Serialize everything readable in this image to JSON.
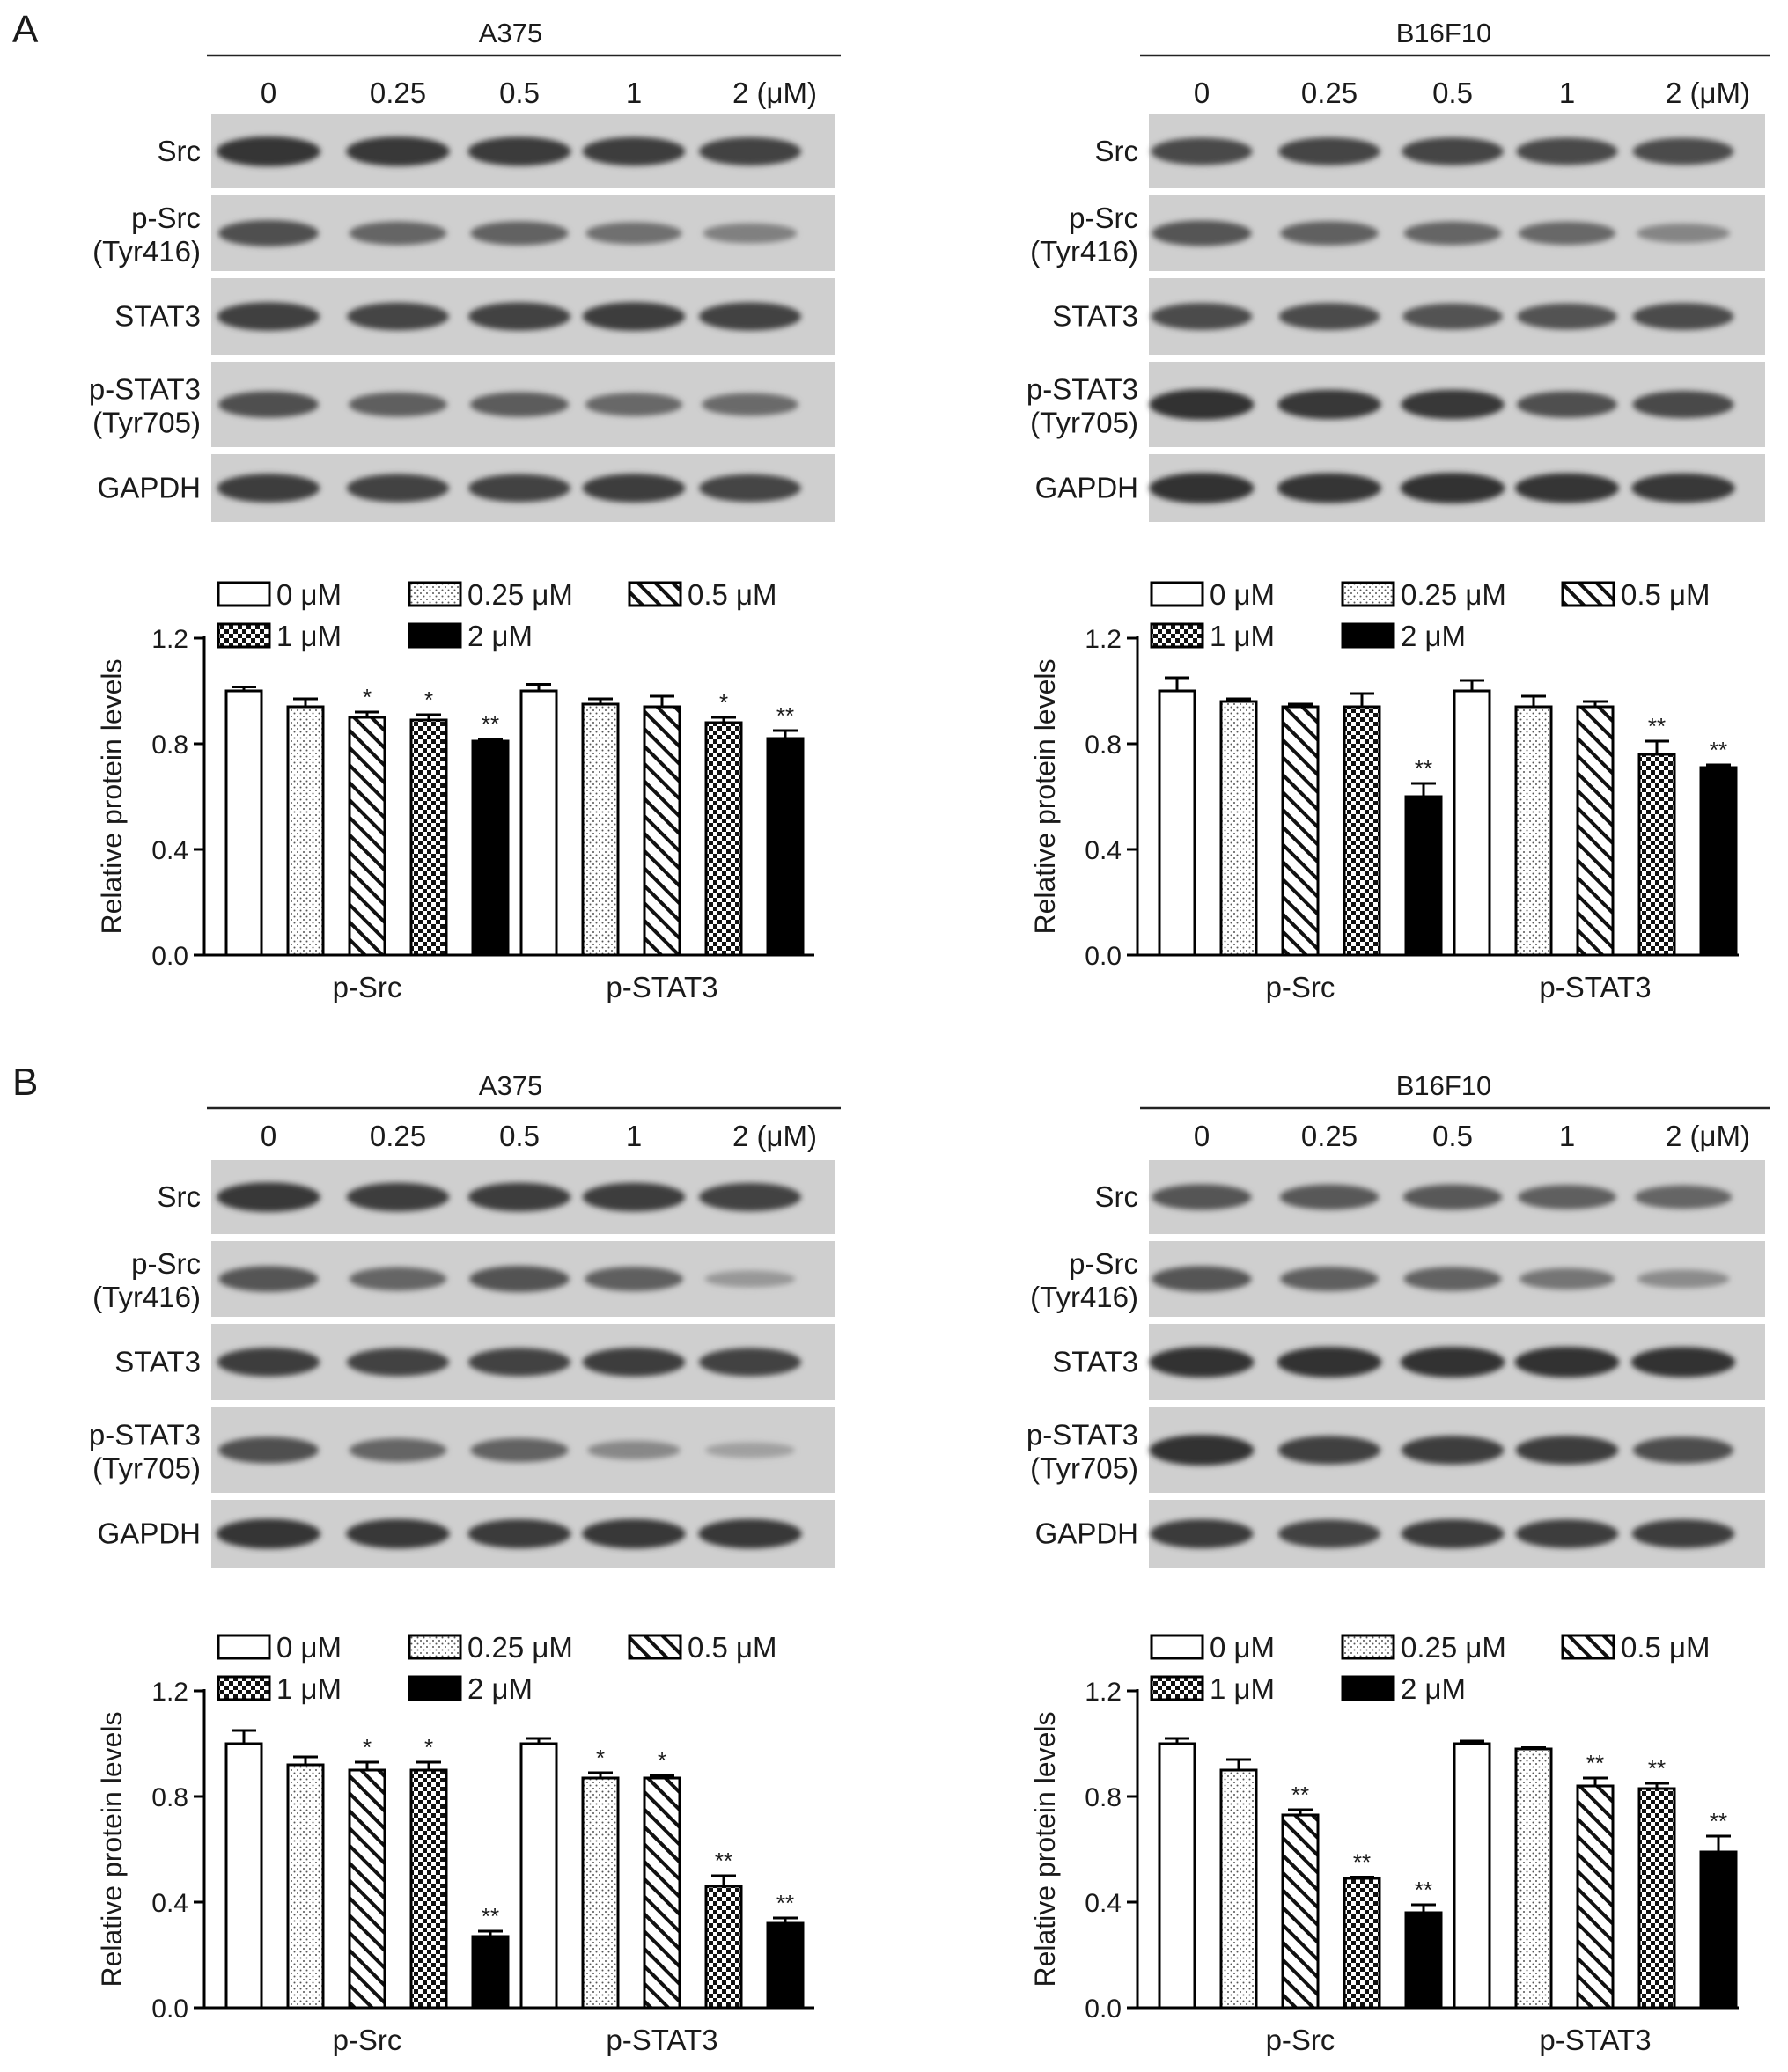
{
  "figure": {
    "panels": [
      {
        "letter": "A",
        "blots": [
          {
            "cell_line": "A375",
            "lane_labels": [
              "0",
              "0.25",
              "0.5",
              "1",
              "2 (μM)"
            ],
            "rows": [
              {
                "lines": [
                  "Src"
                ],
                "intensity": [
                  0.92,
                  0.9,
                  0.88,
                  0.86,
                  0.84
                ]
              },
              {
                "lines": [
                  "p-Src",
                  "(Tyr416)"
                ],
                "intensity": [
                  0.75,
                  0.62,
                  0.64,
                  0.55,
                  0.45
                ]
              },
              {
                "lines": [
                  "STAT3"
                ],
                "intensity": [
                  0.85,
                  0.82,
                  0.84,
                  0.86,
                  0.84
                ]
              },
              {
                "lines": [
                  "p-STAT3",
                  "(Tyr705)"
                ],
                "intensity": [
                  0.75,
                  0.66,
                  0.68,
                  0.6,
                  0.58
                ]
              },
              {
                "lines": [
                  "GAPDH"
                ],
                "intensity": [
                  0.86,
                  0.84,
                  0.83,
                  0.86,
                  0.82
                ]
              }
            ]
          },
          {
            "cell_line": "B16F10",
            "lane_labels": [
              "0",
              "0.25",
              "0.5",
              "1",
              "2 (μM)"
            ],
            "rows": [
              {
                "lines": [
                  "Src"
                ],
                "intensity": [
                  0.8,
                  0.82,
                  0.82,
                  0.8,
                  0.78
                ]
              },
              {
                "lines": [
                  "p-Src",
                  "(Tyr416)"
                ],
                "intensity": [
                  0.72,
                  0.65,
                  0.62,
                  0.6,
                  0.42
                ]
              },
              {
                "lines": [
                  "STAT3"
                ],
                "intensity": [
                  0.78,
                  0.78,
                  0.74,
                  0.74,
                  0.78
                ]
              },
              {
                "lines": [
                  "p-STAT3",
                  "(Tyr705)"
                ],
                "intensity": [
                  0.95,
                  0.9,
                  0.9,
                  0.75,
                  0.8
                ]
              },
              {
                "lines": [
                  "GAPDH"
                ],
                "intensity": [
                  0.95,
                  0.92,
                  0.95,
                  0.92,
                  0.9
                ]
              }
            ]
          }
        ],
        "charts": [
          {
            "type": "bar",
            "ylabel": "Relative protein levels",
            "ylim": [
              0,
              1.2
            ],
            "yticks": [
              "0.0",
              "0.4",
              "0.8",
              "1.2"
            ],
            "groups": [
              "p-Src",
              "p-STAT3"
            ],
            "legend": [
              "0 μM",
              "0.25 μM",
              "0.5 μM",
              "1 μM",
              "2 μM"
            ],
            "values": [
              [
                1.0,
                0.94,
                0.9,
                0.89,
                0.81
              ],
              [
                1.0,
                0.95,
                0.94,
                0.88,
                0.82
              ]
            ],
            "errors": [
              [
                0.015,
                0.03,
                0.02,
                0.02,
                0.008
              ],
              [
                0.025,
                0.02,
                0.04,
                0.02,
                0.03
              ]
            ],
            "marks": [
              [
                "",
                "",
                "*",
                "*",
                "**"
              ],
              [
                "",
                "",
                "",
                "*",
                "**"
              ]
            ]
          },
          {
            "type": "bar",
            "ylabel": "Relative protein levels",
            "ylim": [
              0,
              1.2
            ],
            "yticks": [
              "0.0",
              "0.4",
              "0.8",
              "1.2"
            ],
            "groups": [
              "p-Src",
              "p-STAT3"
            ],
            "legend": [
              "0 μM",
              "0.25 μM",
              "0.5 μM",
              "1 μM",
              "2 μM"
            ],
            "values": [
              [
                1.0,
                0.96,
                0.94,
                0.94,
                0.6
              ],
              [
                1.0,
                0.94,
                0.94,
                0.76,
                0.71
              ]
            ],
            "errors": [
              [
                0.05,
                0.01,
                0.01,
                0.05,
                0.05
              ],
              [
                0.04,
                0.04,
                0.02,
                0.05,
                0.01
              ]
            ],
            "marks": [
              [
                "",
                "",
                "",
                "",
                "**"
              ],
              [
                "",
                "",
                "",
                "**",
                "**"
              ]
            ]
          }
        ]
      },
      {
        "letter": "B",
        "blots": [
          {
            "cell_line": "A375",
            "lane_labels": [
              "0",
              "0.25",
              "0.5",
              "1",
              "2 (μM)"
            ],
            "rows": [
              {
                "lines": [
                  "Src"
                ],
                "intensity": [
                  0.9,
                  0.86,
                  0.86,
                  0.86,
                  0.84
                ]
              },
              {
                "lines": [
                  "p-Src",
                  "(Tyr416)"
                ],
                "intensity": [
                  0.72,
                  0.62,
                  0.74,
                  0.66,
                  0.3
                ]
              },
              {
                "lines": [
                  "STAT3"
                ],
                "intensity": [
                  0.86,
                  0.84,
                  0.84,
                  0.86,
                  0.84
                ]
              },
              {
                "lines": [
                  "p-STAT3",
                  "(Tyr705)"
                ],
                "intensity": [
                  0.75,
                  0.62,
                  0.64,
                  0.4,
                  0.25
                ]
              },
              {
                "lines": [
                  "GAPDH"
                ],
                "intensity": [
                  0.92,
                  0.9,
                  0.88,
                  0.9,
                  0.9
                ]
              }
            ]
          },
          {
            "cell_line": "B16F10",
            "lane_labels": [
              "0",
              "0.25",
              "0.5",
              "1",
              "2 (μM)"
            ],
            "rows": [
              {
                "lines": [
                  "Src"
                ],
                "intensity": [
                  0.72,
                  0.7,
                  0.7,
                  0.66,
                  0.62
                ]
              },
              {
                "lines": [
                  "p-Src",
                  "(Tyr416)"
                ],
                "intensity": [
                  0.72,
                  0.66,
                  0.64,
                  0.52,
                  0.38
                ]
              },
              {
                "lines": [
                  "STAT3"
                ],
                "intensity": [
                  0.95,
                  0.95,
                  0.95,
                  0.95,
                  0.93
                ]
              },
              {
                "lines": [
                  "p-STAT3",
                  "(Tyr705)"
                ],
                "intensity": [
                  0.95,
                  0.85,
                  0.86,
                  0.86,
                  0.76
                ]
              },
              {
                "lines": [
                  "GAPDH"
                ],
                "intensity": [
                  0.88,
                  0.84,
                  0.88,
                  0.86,
                  0.86
                ]
              }
            ]
          }
        ],
        "charts": [
          {
            "type": "bar",
            "ylabel": "Relative protein levels",
            "ylim": [
              0,
              1.2
            ],
            "yticks": [
              "0.0",
              "0.4",
              "0.8",
              "1.2"
            ],
            "groups": [
              "p-Src",
              "p-STAT3"
            ],
            "legend": [
              "0 μM",
              "0.25 μM",
              "0.5 μM",
              "1 μM",
              "2 μM"
            ],
            "values": [
              [
                1.0,
                0.92,
                0.9,
                0.9,
                0.27
              ],
              [
                1.0,
                0.87,
                0.87,
                0.46,
                0.32
              ]
            ],
            "errors": [
              [
                0.05,
                0.03,
                0.03,
                0.03,
                0.02
              ],
              [
                0.02,
                0.02,
                0.01,
                0.04,
                0.02
              ]
            ],
            "marks": [
              [
                "",
                "",
                "*",
                "*",
                "**"
              ],
              [
                "",
                "*",
                "*",
                "**",
                "**"
              ]
            ]
          },
          {
            "type": "bar",
            "ylabel": "Relative protein levels",
            "ylim": [
              0,
              1.2
            ],
            "yticks": [
              "0.0",
              "0.4",
              "0.8",
              "1.2"
            ],
            "groups": [
              "p-Src",
              "p-STAT3"
            ],
            "legend": [
              "0 μM",
              "0.25 μM",
              "0.5 μM",
              "1 μM",
              "2 μM"
            ],
            "values": [
              [
                1.0,
                0.9,
                0.73,
                0.49,
                0.36
              ],
              [
                1.0,
                0.98,
                0.84,
                0.83,
                0.59
              ]
            ],
            "errors": [
              [
                0.02,
                0.04,
                0.02,
                0.005,
                0.03
              ],
              [
                0.01,
                0.005,
                0.03,
                0.02,
                0.06
              ]
            ],
            "marks": [
              [
                "",
                "",
                "**",
                "**",
                "**"
              ],
              [
                "",
                "",
                "**",
                "**",
                "**"
              ]
            ]
          }
        ]
      }
    ]
  }
}
